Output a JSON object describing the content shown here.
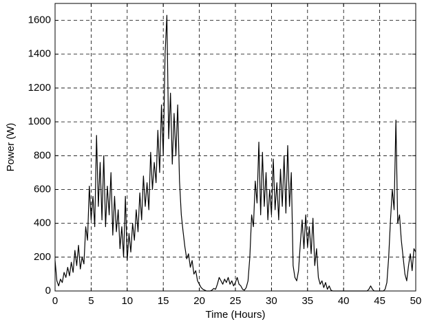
{
  "chart_data": {
    "type": "line",
    "xlabel": "Time (Hours)",
    "ylabel": "Power (W)",
    "xlim": [
      0,
      50
    ],
    "xticks": [
      0,
      5,
      10,
      15,
      20,
      25,
      30,
      35,
      40,
      45,
      50
    ],
    "ylim": [
      0,
      1700
    ],
    "yticks": [
      0,
      200,
      400,
      600,
      800,
      1000,
      1200,
      1400,
      1600
    ],
    "grid": true,
    "x": [
      0,
      0.25,
      0.5,
      0.75,
      1,
      1.25,
      1.5,
      1.75,
      2,
      2.25,
      2.5,
      2.75,
      3,
      3.25,
      3.5,
      3.75,
      4,
      4.25,
      4.5,
      4.75,
      5,
      5.25,
      5.5,
      5.75,
      6,
      6.25,
      6.5,
      6.75,
      7,
      7.25,
      7.5,
      7.75,
      8,
      8.25,
      8.5,
      8.75,
      9,
      9.25,
      9.5,
      9.75,
      10,
      10.25,
      10.5,
      10.75,
      11,
      11.25,
      11.5,
      11.75,
      12,
      12.25,
      12.5,
      12.75,
      13,
      13.25,
      13.5,
      13.75,
      14,
      14.25,
      14.5,
      14.75,
      15,
      15.25,
      15.5,
      15.75,
      16,
      16.25,
      16.5,
      16.75,
      17,
      17.25,
      17.5,
      17.75,
      18,
      18.25,
      18.5,
      18.75,
      19,
      19.25,
      19.5,
      19.75,
      20,
      20.25,
      20.5,
      20.75,
      21,
      21.25,
      21.5,
      21.75,
      22,
      22.25,
      22.5,
      22.75,
      23,
      23.25,
      23.5,
      23.75,
      24,
      24.25,
      24.5,
      24.75,
      25,
      25.25,
      25.5,
      25.75,
      26,
      26.25,
      26.5,
      26.75,
      27,
      27.25,
      27.5,
      27.75,
      28,
      28.25,
      28.5,
      28.75,
      29,
      29.25,
      29.5,
      29.75,
      30,
      30.25,
      30.5,
      30.75,
      31,
      31.25,
      31.5,
      31.75,
      32,
      32.25,
      32.5,
      32.75,
      33,
      33.25,
      33.5,
      33.75,
      34,
      34.25,
      34.5,
      34.75,
      35,
      35.25,
      35.5,
      35.75,
      36,
      36.25,
      36.5,
      36.75,
      37,
      37.25,
      37.5,
      37.75,
      38,
      38.25,
      38.5,
      38.75,
      39,
      39.25,
      39.5,
      39.75,
      40,
      40.25,
      40.5,
      40.75,
      41,
      41.25,
      41.5,
      41.75,
      42,
      42.25,
      42.5,
      42.75,
      43,
      43.25,
      43.5,
      43.75,
      44,
      44.25,
      44.5,
      44.75,
      45,
      45.25,
      45.5,
      45.75,
      46,
      46.25,
      46.5,
      46.75,
      47,
      47.25,
      47.5,
      47.75,
      48,
      48.25,
      48.5,
      48.75,
      49,
      49.25,
      49.5,
      49.75,
      50
    ],
    "series": [
      {
        "name": "Power",
        "color": "#000000",
        "values": [
          180,
          60,
          30,
          70,
          50,
          110,
          80,
          140,
          90,
          170,
          110,
          240,
          150,
          270,
          130,
          200,
          160,
          380,
          300,
          620,
          420,
          560,
          380,
          920,
          500,
          760,
          420,
          800,
          380,
          620,
          450,
          700,
          330,
          560,
          350,
          480,
          250,
          380,
          200,
          560,
          180,
          340,
          230,
          400,
          300,
          480,
          350,
          580,
          420,
          680,
          500,
          640,
          480,
          820,
          600,
          760,
          640,
          950,
          700,
          1100,
          800,
          1400,
          1630,
          900,
          1170,
          750,
          1050,
          800,
          1100,
          650,
          450,
          350,
          260,
          190,
          220,
          140,
          180,
          100,
          120,
          60,
          40,
          20,
          10,
          5,
          0,
          0,
          0,
          5,
          15,
          10,
          40,
          80,
          60,
          40,
          70,
          50,
          80,
          40,
          60,
          30,
          50,
          80,
          40,
          30,
          10,
          5,
          20,
          60,
          200,
          450,
          380,
          650,
          520,
          880,
          450,
          820,
          500,
          700,
          420,
          600,
          450,
          780,
          480,
          640,
          420,
          720,
          500,
          800,
          460,
          860,
          500,
          700,
          150,
          80,
          60,
          120,
          280,
          420,
          250,
          450,
          260,
          380,
          220,
          430,
          150,
          250,
          80,
          40,
          60,
          20,
          50,
          10,
          30,
          5,
          0,
          0,
          0,
          0,
          0,
          0,
          0,
          0,
          0,
          0,
          0,
          0,
          0,
          0,
          0,
          0,
          0,
          0,
          0,
          0,
          10,
          30,
          10,
          0,
          0,
          0,
          0,
          0,
          0,
          10,
          50,
          200,
          420,
          600,
          480,
          1010,
          400,
          450,
          300,
          200,
          100,
          60,
          150,
          220,
          120,
          250,
          230
        ]
      }
    ]
  }
}
